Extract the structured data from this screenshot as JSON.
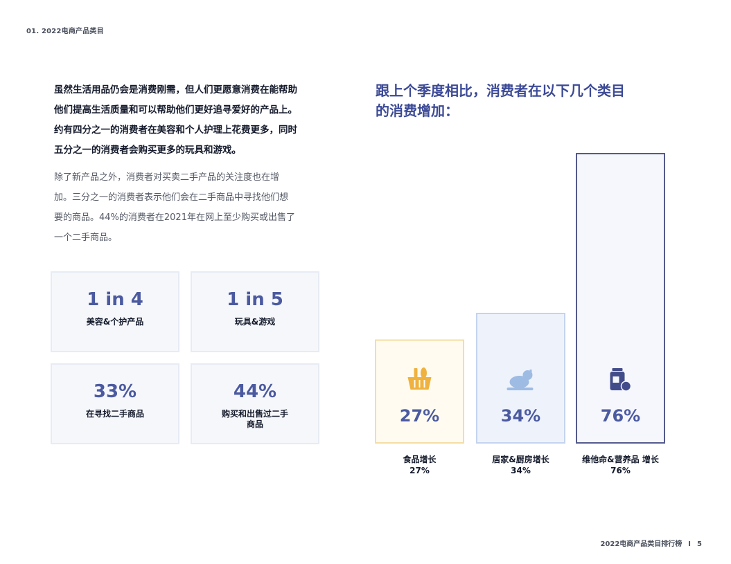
{
  "header": {
    "section": "01. 2022电商产品类目"
  },
  "lead_paragraph": [
    "虽然生活用品仍会是消费刚需，但人们更愿意消费在能帮助",
    "他们提高生活质量和可以帮助他们更好追寻爱好的产品上。",
    "约有四分之一的消费者在美容和个人护理上花费更多，同时",
    "五分之一的消费者会购买更多的玩具和游戏。"
  ],
  "body_paragraph": [
    "除了新产品之外，消费者对买卖二手产品的关注度也在增",
    "加。三分之一的消费者表示他们会在二手商品中寻找他们想",
    "要的商品。44%的消费者在2021年在网上至少购买或出售了",
    "一个二手商品。"
  ],
  "stats": [
    {
      "value": "1 in 4",
      "label": "美容&个护产品"
    },
    {
      "value": "1 in 5",
      "label": "玩具&游戏"
    },
    {
      "value": "33%",
      "label": "在寻找二手商品"
    },
    {
      "value": "44%",
      "label": "购买和出售过二手\n商品"
    }
  ],
  "chart_title": [
    "跟上个季度相比，消费者在以下几个类目",
    "的消费增加："
  ],
  "chart_data": {
    "type": "bar",
    "categories": [
      "食品增长",
      "居家&厨房增长",
      "维他命&营养品 增长"
    ],
    "values": [
      27,
      34,
      76
    ],
    "value_labels": [
      "27%",
      "34%",
      "76%"
    ],
    "icons": [
      "food-basket-icon",
      "roast-chicken-icon",
      "supplement-bottle-icon"
    ],
    "colors": {
      "fills": [
        "#fffbf0",
        "#eef3fb",
        "#f6f7fc"
      ],
      "borders": [
        "#f5dea3",
        "#c4d4ee",
        "#545a8c"
      ],
      "icons": [
        "#efb23f",
        "#9ebbe3",
        "#434c8a"
      ],
      "value_text": "#4b5aa0"
    }
  },
  "footer": {
    "title": "2022电商产品类目排行榜",
    "separator": "I",
    "page": "5"
  }
}
